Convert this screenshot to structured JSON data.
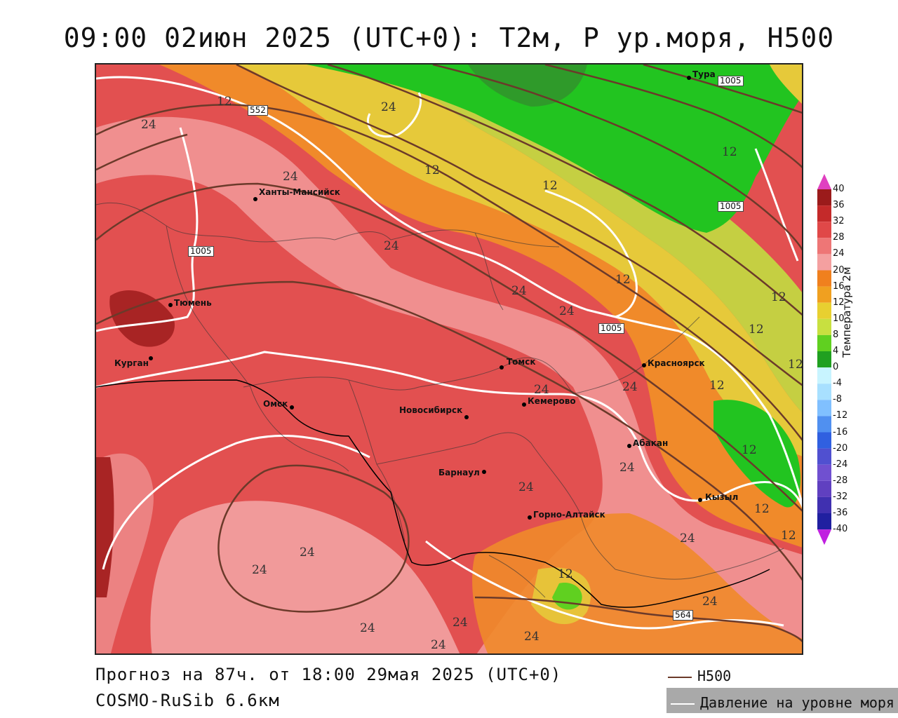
{
  "title": "09:00 02июн 2025 (UTC+0): Т2м, Р ур.моря, Н500",
  "footer": {
    "forecast": "Прогноз на 87ч. от 18:00 29мая 2025 (UTC+0)",
    "model": "COSMO-RuSib 6.6км"
  },
  "legend": {
    "h500": "H500",
    "slp": "Давление на уровне моря",
    "h500_color": "#6b3a2a",
    "slp_color": "#ffffff"
  },
  "colorbar": {
    "title": "Температура 2м",
    "levels": [
      "40",
      "36",
      "32",
      "28",
      "24",
      "20",
      "16",
      "12",
      "10",
      "8",
      "4",
      "0",
      "-4",
      "-8",
      "-12",
      "-16",
      "-20",
      "-24",
      "-28",
      "-32",
      "-36",
      "-40"
    ],
    "colors": [
      "#9b1b1b",
      "#c42a2a",
      "#e04848",
      "#ee7676",
      "#f4a0a0",
      "#f0801e",
      "#f0a020",
      "#e8d030",
      "#c8e040",
      "#60d020",
      "#20a020",
      "#c8f4ff",
      "#a8e0ff",
      "#80c0ff",
      "#5090f0",
      "#3060e0",
      "#5050d0",
      "#7050d0",
      "#6040c0",
      "#4030b0",
      "#2020a0"
    ],
    "top_arrow_color": "#e040c0",
    "bottom_arrow_color": "#c020e0"
  },
  "cities": [
    {
      "name": "Тура"
    },
    {
      "name": "Ханты-Мансийск"
    },
    {
      "name": "Тюмень"
    },
    {
      "name": "Курган"
    },
    {
      "name": "Омск"
    },
    {
      "name": "Новосибирск"
    },
    {
      "name": "Томск"
    },
    {
      "name": "Кемерово"
    },
    {
      "name": "Красноярск"
    },
    {
      "name": "Абакан"
    },
    {
      "name": "Барнаул"
    },
    {
      "name": "Горно-Алтайск"
    },
    {
      "name": "Кызыл"
    }
  ],
  "temp_labels": [
    "12",
    "24",
    "24",
    "12",
    "12",
    "12",
    "12",
    "24",
    "24",
    "24",
    "12",
    "12",
    "24",
    "24",
    "12",
    "12",
    "12",
    "24",
    "24",
    "24",
    "24",
    "24",
    "24",
    "24",
    "12",
    "24",
    "24",
    "12",
    "24",
    "24",
    "12"
  ],
  "pressure_labels": [
    "552",
    "1005",
    "1005",
    "1005",
    "1005",
    "564"
  ]
}
